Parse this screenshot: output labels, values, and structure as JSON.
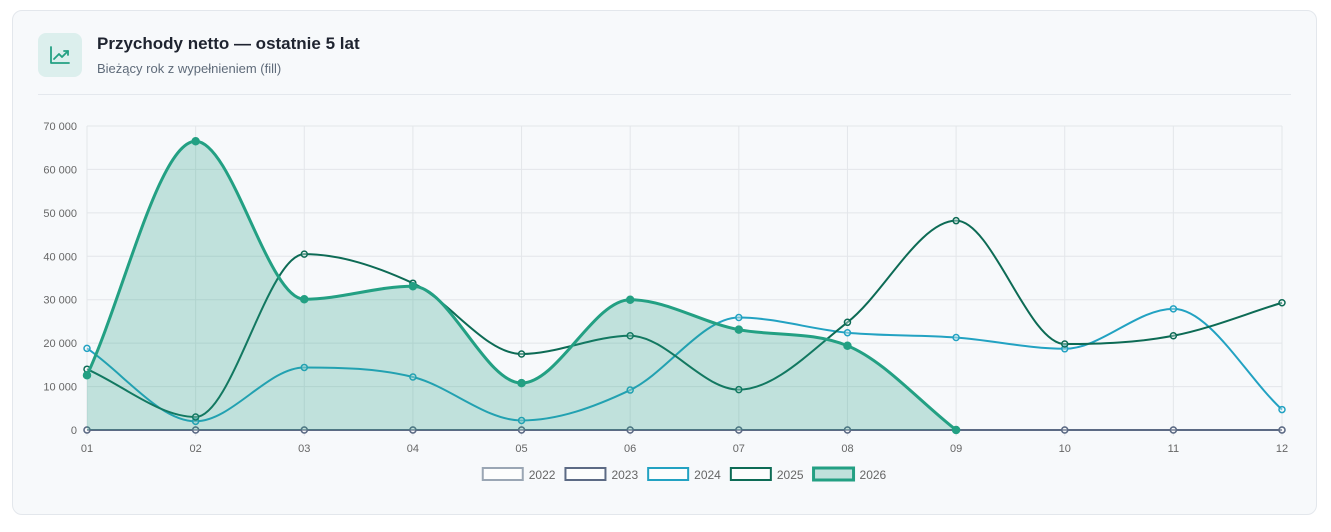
{
  "header": {
    "title": "Przychody netto — ostatnie 5 lat",
    "subtitle": "Bieżący rok z wypełnieniem (fill)",
    "icon": "trending-up-icon"
  },
  "colors": {
    "2022": "#9aa6b4",
    "2023": "#5c6a84",
    "2024": "#22a2c2",
    "2025": "#0d6b55",
    "2026": "#23a083",
    "fill_2026": "rgba(35,160,131,0.26)",
    "grid": "#e3e6ea",
    "tick": "#666666"
  },
  "chart_data": {
    "type": "line",
    "categories": [
      "01",
      "02",
      "03",
      "04",
      "05",
      "06",
      "07",
      "08",
      "09",
      "10",
      "11",
      "12"
    ],
    "ylim": [
      0,
      70000
    ],
    "yticks": [
      0,
      10000,
      20000,
      30000,
      40000,
      50000,
      60000,
      70000
    ],
    "ytick_labels": [
      "0",
      "10 000",
      "20 000",
      "30 000",
      "40 000",
      "50 000",
      "60 000",
      "70 000"
    ],
    "grid": true,
    "legend_position": "bottom",
    "series": [
      {
        "name": "2022",
        "values": [
          0,
          0,
          0,
          0,
          0,
          0,
          0,
          0,
          0,
          0,
          0,
          0
        ],
        "fill": false
      },
      {
        "name": "2023",
        "values": [
          0,
          0,
          0,
          0,
          0,
          0,
          0,
          0,
          0,
          0,
          0,
          0
        ],
        "fill": false
      },
      {
        "name": "2024",
        "values": [
          18800,
          2000,
          14400,
          12200,
          2200,
          9200,
          25900,
          22400,
          21300,
          18700,
          27900,
          4700
        ],
        "fill": false
      },
      {
        "name": "2025",
        "values": [
          14000,
          3000,
          40500,
          33800,
          17500,
          21700,
          9300,
          24800,
          48200,
          19800,
          21700,
          29300
        ],
        "fill": false
      },
      {
        "name": "2026",
        "values": [
          12600,
          66500,
          30100,
          33100,
          10800,
          30000,
          23100,
          19400,
          0,
          null,
          null,
          null
        ],
        "fill": true
      }
    ]
  }
}
